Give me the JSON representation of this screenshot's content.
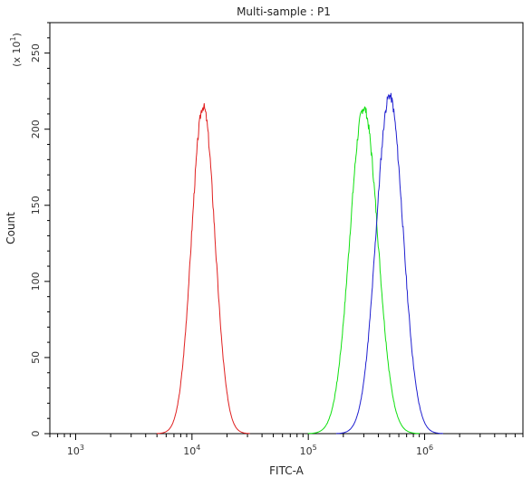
{
  "chart_data": {
    "type": "line",
    "title": "Multi-sample : P1",
    "xlabel": "FITC-A",
    "ylabel": "Count",
    "y_multiplier_label": "(x 10",
    "y_multiplier_exp": "1",
    "x_scale": "log",
    "xlim": [
      600,
      7000000
    ],
    "ylim": [
      0,
      270
    ],
    "x_ticks": [
      {
        "value": 1000,
        "base": "10",
        "exp": "3"
      },
      {
        "value": 10000,
        "base": "10",
        "exp": "4"
      },
      {
        "value": 100000,
        "base": "10",
        "exp": "5"
      },
      {
        "value": 1000000,
        "base": "10",
        "exp": "6"
      }
    ],
    "y_ticks": [
      0,
      50,
      100,
      150,
      200,
      250
    ],
    "grid": false,
    "legend": "none",
    "series": [
      {
        "color": "#e02020",
        "peak_x": 12500,
        "peak_y": 215,
        "width_log10": 0.1,
        "noise_seed": 3
      },
      {
        "color": "#10e010",
        "peak_x": 300000,
        "peak_y": 214,
        "width_log10": 0.12,
        "noise_seed": 7
      },
      {
        "color": "#2020d0",
        "peak_x": 500000,
        "peak_y": 222,
        "width_log10": 0.115,
        "noise_seed": 11
      }
    ]
  }
}
